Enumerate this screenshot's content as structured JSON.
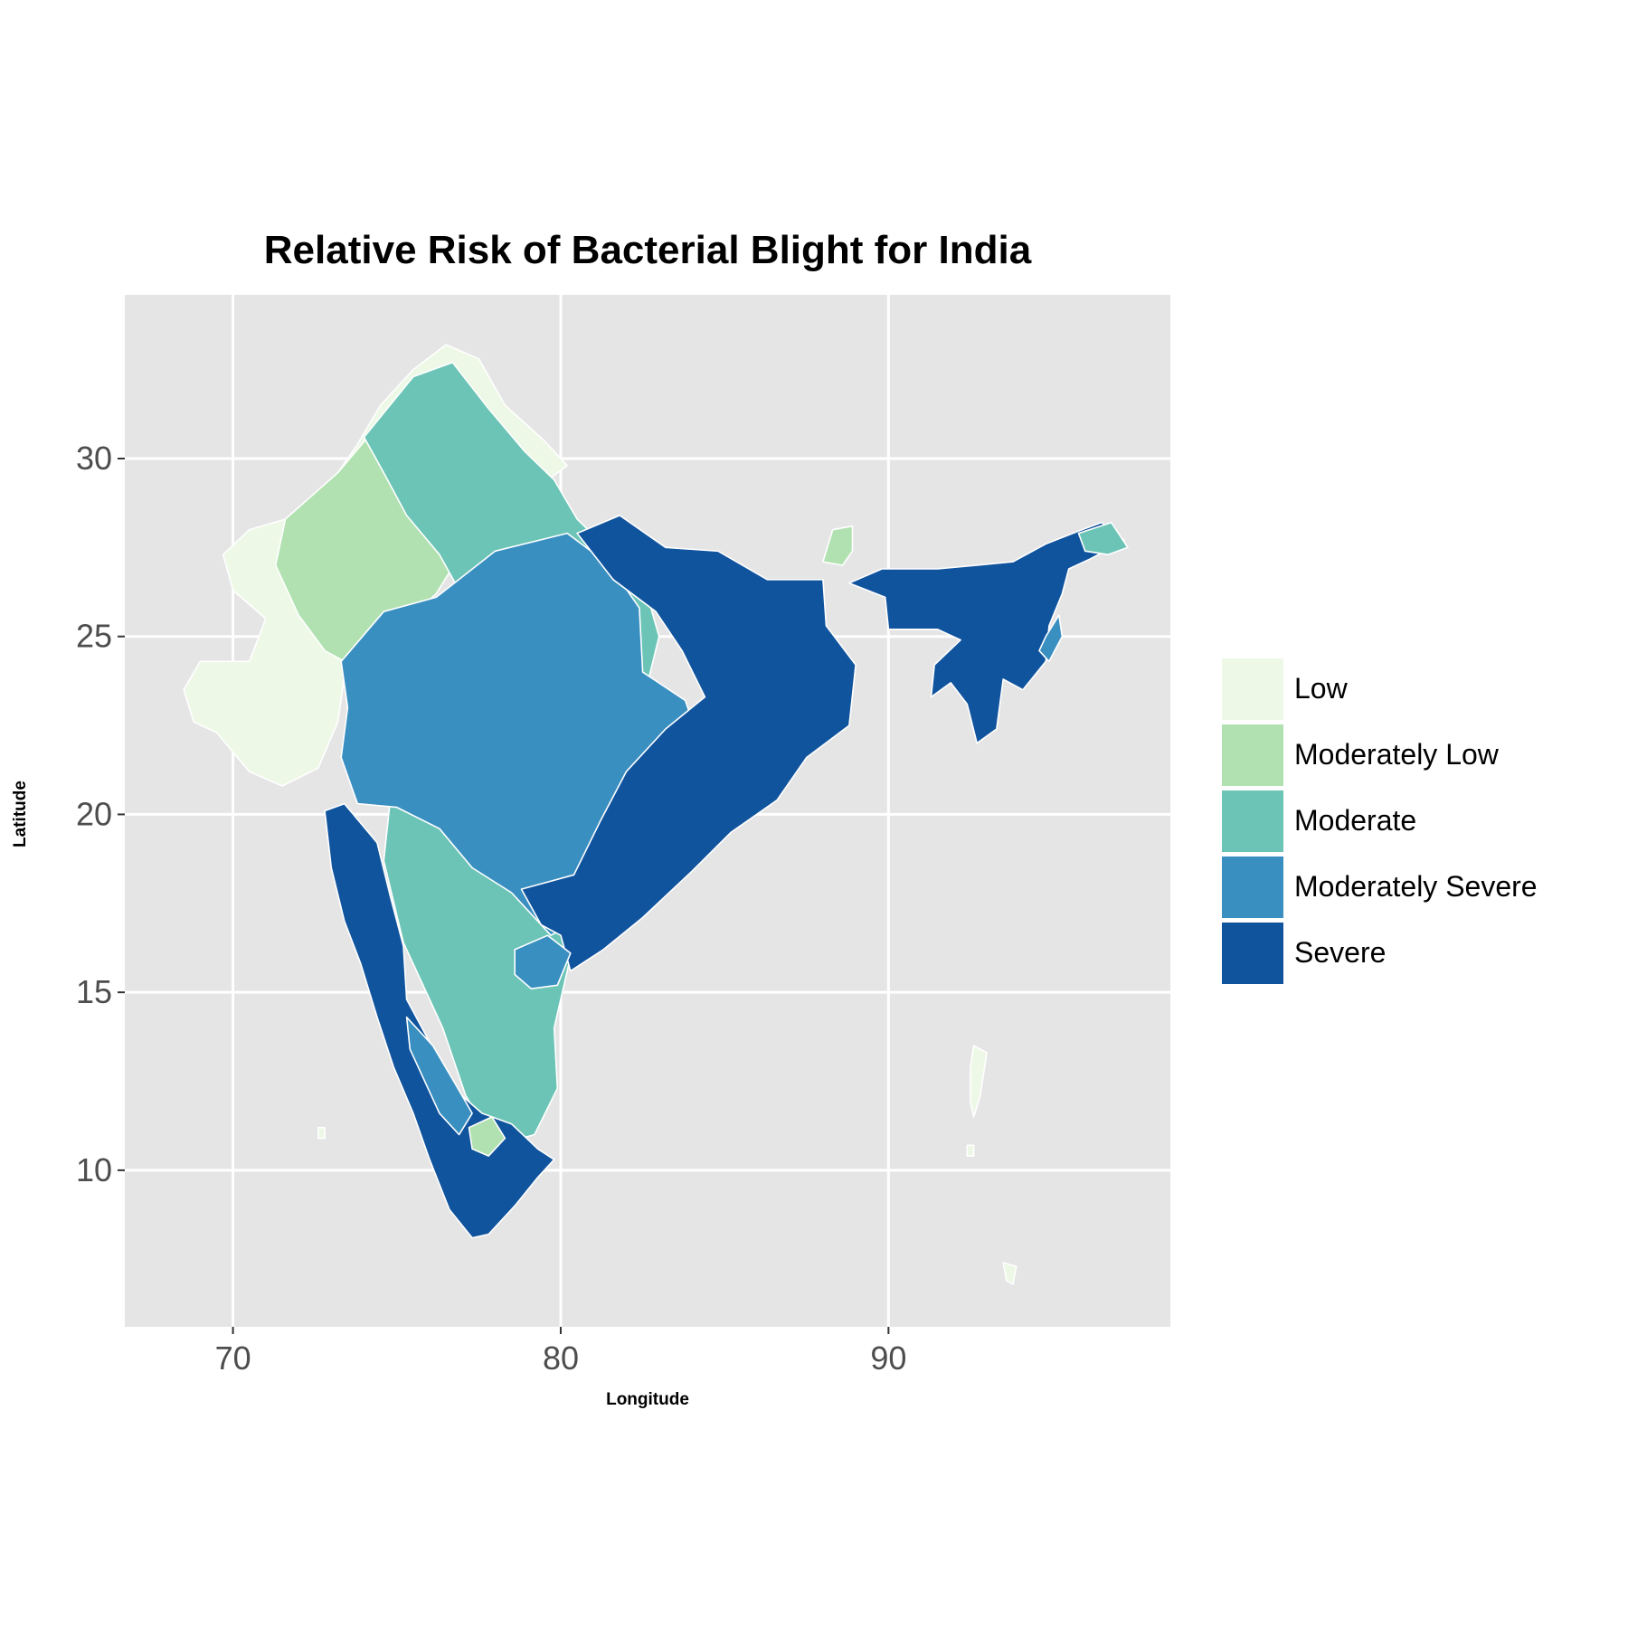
{
  "title": "Relative Risk of Bacterial Blight for India",
  "xlabel": "Longitude",
  "ylabel": "Latitude",
  "chart_data": {
    "type": "choropleth",
    "title": "Relative Risk of Bacterial Blight for India",
    "xlabel": "Longitude",
    "ylabel": "Latitude",
    "xlim": [
      66.7,
      98.6
    ],
    "ylim": [
      5.6,
      34.6
    ],
    "xticks": [
      70,
      80,
      90
    ],
    "yticks": [
      10,
      15,
      20,
      25,
      30
    ],
    "grid": true,
    "legend_position": "right",
    "legend": [
      {
        "label": "Low",
        "color": "#edf8e6"
      },
      {
        "label": "Moderately Low",
        "color": "#b1e1b1"
      },
      {
        "label": "Moderate",
        "color": "#6cc4b6"
      },
      {
        "label": "Moderately Severe",
        "color": "#3a8fc1"
      },
      {
        "label": "Severe",
        "color": "#11549e"
      }
    ],
    "panel_color": "#e5e5e5",
    "border_color": "#ffffff"
  }
}
